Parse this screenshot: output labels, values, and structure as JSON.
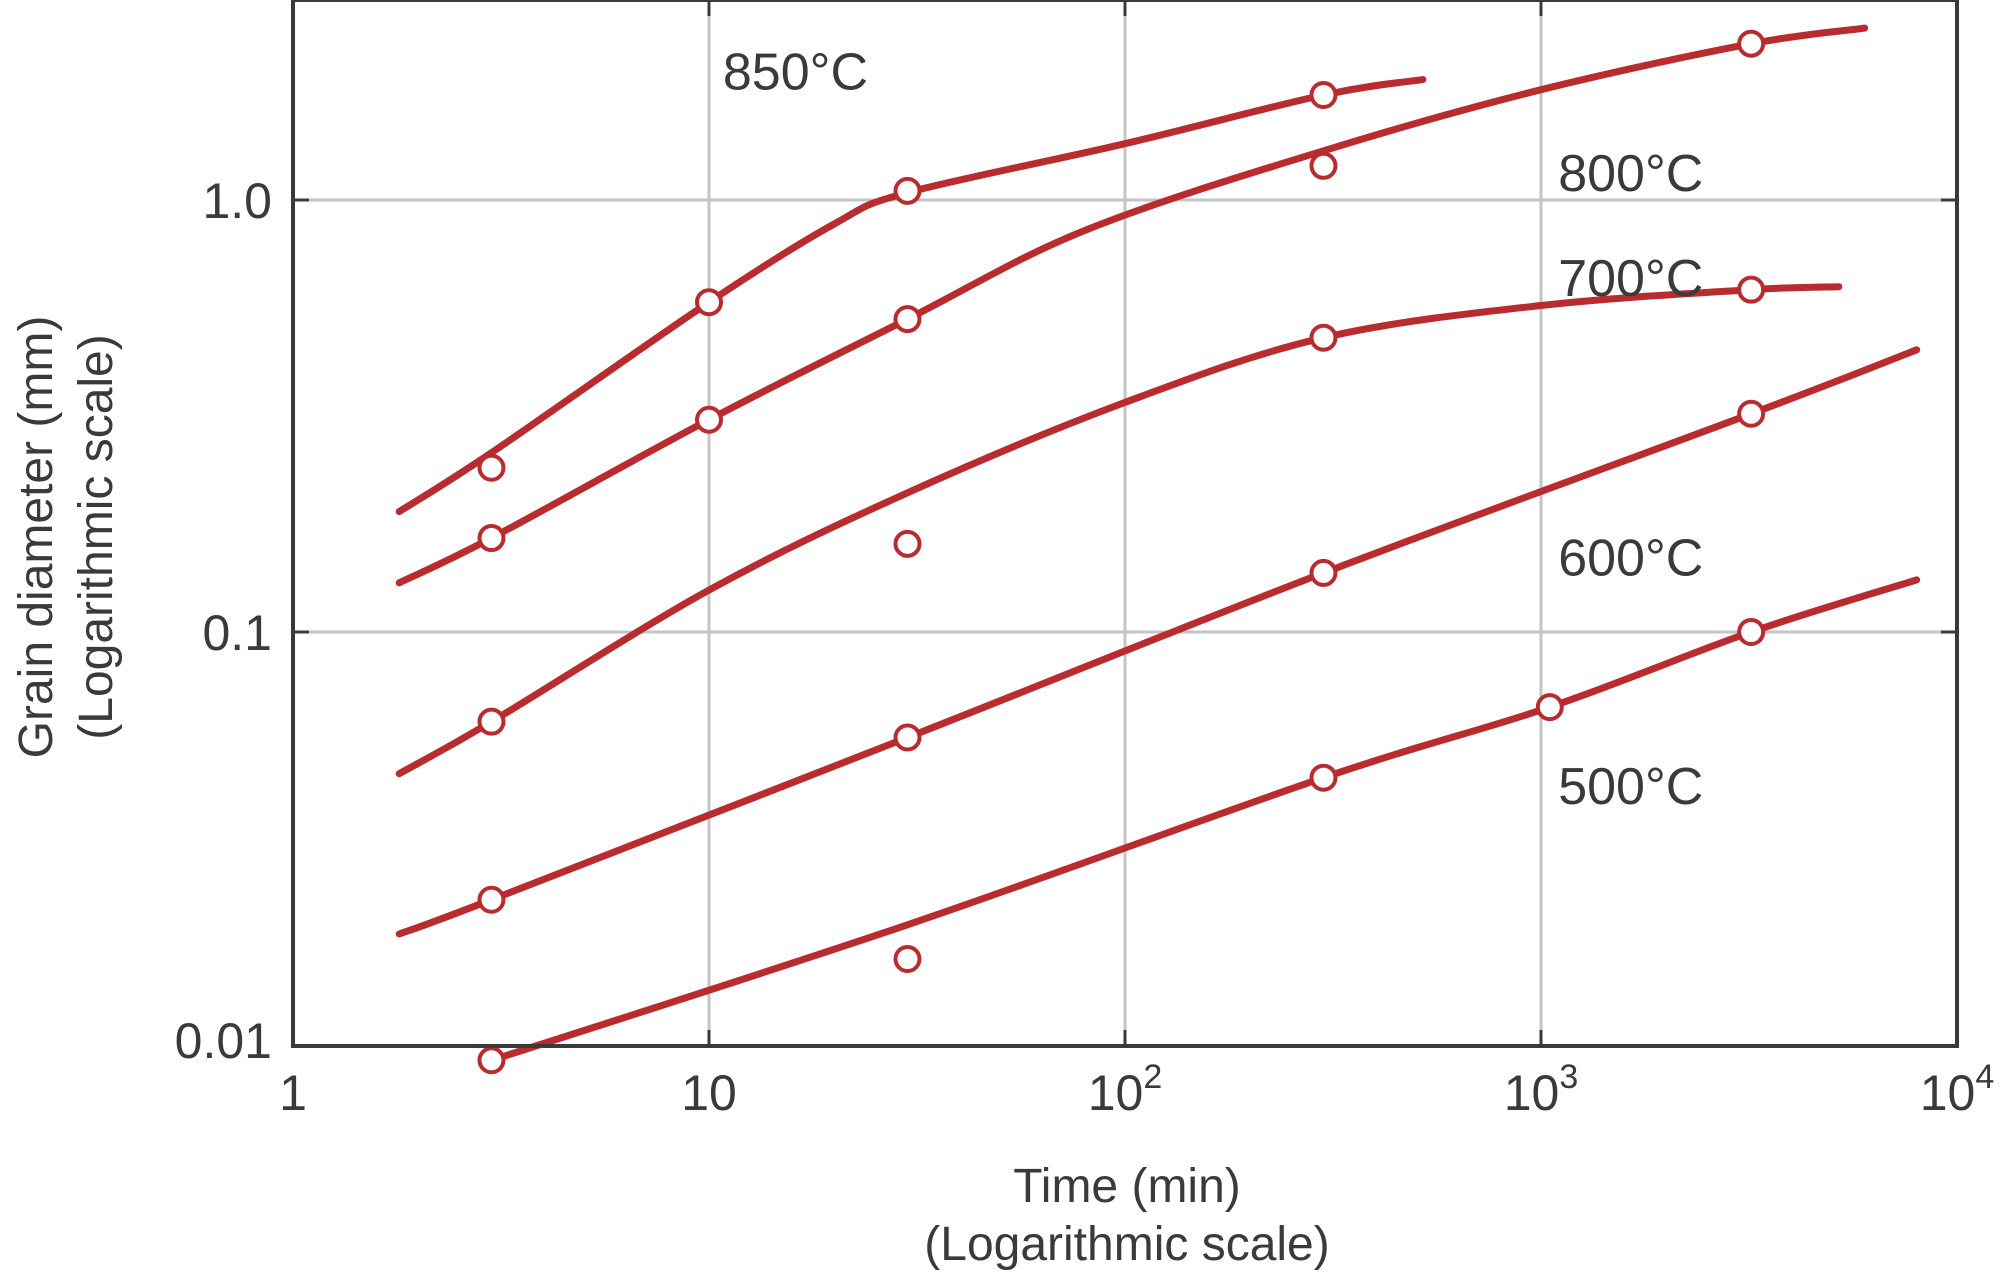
{
  "chart_data": {
    "type": "line",
    "x_scale": "log",
    "y_scale": "log",
    "xlim": [
      1,
      10000
    ],
    "ylim": [
      0.01,
      3
    ],
    "grid": true,
    "colors": {
      "series": "#b82c2f",
      "axis": "#3a3a3a",
      "grid": "#c4c4c4"
    },
    "xlabel": [
      "Time (min)",
      "(Logarithmic scale)"
    ],
    "ylabel": [
      "Grain diameter (mm)",
      "(Logarithmic scale)"
    ],
    "x_ticks": [
      {
        "value": 1,
        "base": "1",
        "exp": ""
      },
      {
        "value": 10,
        "base": "10",
        "exp": ""
      },
      {
        "value": 100,
        "base": "10",
        "exp": "2"
      },
      {
        "value": 1000,
        "base": "10",
        "exp": "3"
      },
      {
        "value": 10000,
        "base": "10",
        "exp": "4"
      }
    ],
    "y_ticks": [
      {
        "value": 0.01,
        "label": "0.01"
      },
      {
        "value": 0.1,
        "label": "0.1"
      },
      {
        "value": 1,
        "label": "1.0"
      }
    ],
    "series": [
      {
        "name": "850°C",
        "label_at": [
          10.8,
          1.8
        ],
        "points": [
          [
            3,
            0.24
          ],
          [
            10,
            0.58
          ],
          [
            30,
            1.05
          ],
          [
            300,
            1.75
          ]
        ],
        "curve": [
          [
            1.8,
            0.19
          ],
          [
            3,
            0.26
          ],
          [
            10,
            0.58
          ],
          [
            20,
            0.88
          ],
          [
            30,
            1.04
          ],
          [
            100,
            1.35
          ],
          [
            300,
            1.75
          ],
          [
            520,
            1.9
          ]
        ]
      },
      {
        "name": "800°C",
        "label_at": [
          1100,
          1.05
        ],
        "points": [
          [
            3,
            0.165
          ],
          [
            10,
            0.31
          ],
          [
            30,
            0.53
          ],
          [
            300,
            1.2
          ],
          [
            3200,
            2.3
          ]
        ],
        "curve": [
          [
            1.8,
            0.13
          ],
          [
            3,
            0.165
          ],
          [
            10,
            0.31
          ],
          [
            30,
            0.53
          ],
          [
            80,
            0.85
          ],
          [
            300,
            1.3
          ],
          [
            1000,
            1.8
          ],
          [
            3200,
            2.3
          ],
          [
            6000,
            2.5
          ]
        ]
      },
      {
        "name": "700°C",
        "label_at": [
          1100,
          0.6
        ],
        "points": [
          [
            3,
            0.062
          ],
          [
            30,
            0.16
          ],
          [
            300,
            0.48
          ],
          [
            3200,
            0.62
          ]
        ],
        "curve": [
          [
            1.8,
            0.047
          ],
          [
            3,
            0.062
          ],
          [
            10,
            0.125
          ],
          [
            30,
            0.21
          ],
          [
            100,
            0.34
          ],
          [
            300,
            0.48
          ],
          [
            1000,
            0.57
          ],
          [
            3200,
            0.62
          ],
          [
            5200,
            0.63
          ]
        ]
      },
      {
        "name": "600°C",
        "label_at": [
          1100,
          0.135
        ],
        "points": [
          [
            3,
            0.024
          ],
          [
            30,
            0.057
          ],
          [
            300,
            0.137
          ],
          [
            3200,
            0.32
          ]
        ],
        "curve": [
          [
            1.8,
            0.02
          ],
          [
            3,
            0.024
          ],
          [
            30,
            0.057
          ],
          [
            300,
            0.137
          ],
          [
            3200,
            0.32
          ],
          [
            8000,
            0.45
          ]
        ]
      },
      {
        "name": "500°C",
        "label_at": [
          1100,
          0.04
        ],
        "points": [
          [
            3,
            0.0102
          ],
          [
            30,
            0.0175
          ],
          [
            300,
            0.046
          ],
          [
            1050,
            0.067
          ],
          [
            3200,
            0.1
          ]
        ],
        "curve": [
          [
            3,
            0.0102
          ],
          [
            30,
            0.021
          ],
          [
            300,
            0.046
          ],
          [
            1050,
            0.067
          ],
          [
            3200,
            0.1
          ],
          [
            8000,
            0.132
          ]
        ]
      }
    ]
  }
}
